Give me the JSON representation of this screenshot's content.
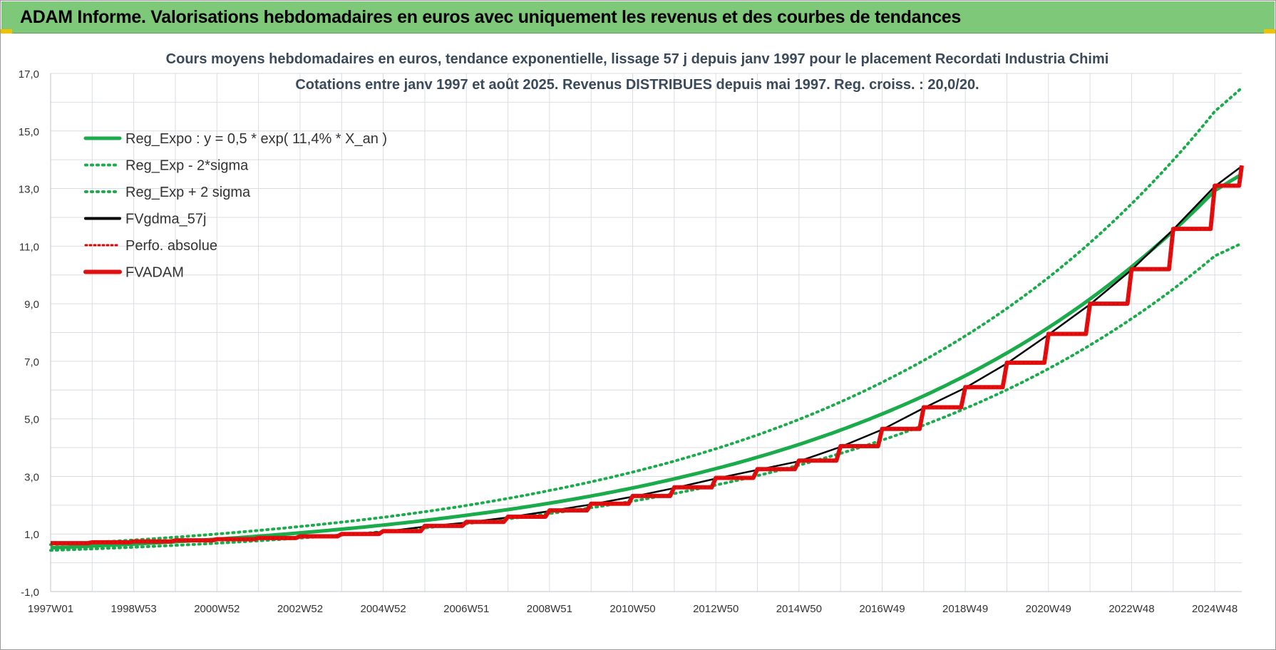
{
  "banner": {
    "title": "ADAM Informe. Valorisations hebdomadaires en euros avec uniquement les revenus et des courbes de tendances"
  },
  "colors": {
    "banner_bg": "#7ec87a",
    "trend": "#1aab4a",
    "fvgdma": "#000000",
    "perfo": "#e00000",
    "fvadam": "#e01010"
  },
  "chart_data": {
    "type": "line",
    "title_line1": "Cours moyens hebdomadaires en euros, tendance exponentielle, lissage 57 j depuis janv 1997 pour le placement Recordati Industria Chimi",
    "title_line2": "Cotations entre janv 1997 et août 2025. Revenus DISTRIBUES depuis mai 1997. Reg. croiss. : 20,0/20.",
    "ylim": [
      -1,
      17
    ],
    "yticks": [
      "17,0",
      "15,0",
      "13,0",
      "11,0",
      "9,0",
      "7,0",
      "5,0",
      "3,0",
      "1,0",
      "-1,0"
    ],
    "ytick_values": [
      17,
      15,
      13,
      11,
      9,
      7,
      5,
      3,
      1,
      -1
    ],
    "xlim": [
      1997.0,
      2025.65
    ],
    "xticks": [
      "1997W01",
      "1998W53",
      "2000W52",
      "2002W52",
      "2004W52",
      "2006W51",
      "2008W51",
      "2010W50",
      "2012W50",
      "2014W50",
      "2016W49",
      "2018W49",
      "2020W49",
      "2022W48",
      "2024W48"
    ],
    "xtick_values": [
      1997.0,
      1999.0,
      2001.0,
      2003.0,
      2005.0,
      2007.0,
      2009.0,
      2011.0,
      2013.0,
      2015.0,
      2017.0,
      2019.0,
      2021.0,
      2023.0,
      2025.0
    ],
    "grid": true,
    "legend_position": "top-left",
    "legend": [
      {
        "label": "Reg_Expo : y = 0,5 * exp( 11,4% *  X_an )",
        "style": "solid",
        "color": "#1aab4a"
      },
      {
        "label": "Reg_Exp - 2*sigma",
        "style": "dotted",
        "color": "#1aab4a"
      },
      {
        "label": "Reg_Exp + 2 sigma",
        "style": "dotted",
        "color": "#1aab4a"
      },
      {
        "label": "FVgdma_57j",
        "style": "solid",
        "color": "#000000"
      },
      {
        "label": "Perfo. absolue",
        "style": "dotted",
        "color": "#e00000"
      },
      {
        "label": "FVADAM",
        "style": "solid",
        "color": "#e01010"
      }
    ],
    "series": [
      {
        "name": "Reg_Expo : y = 0,5 * exp( 11,4% *  X_an )",
        "x": [
          1997.0,
          1999.0,
          2001.0,
          2003.0,
          2005.0,
          2007.0,
          2009.0,
          2011.0,
          2013.0,
          2015.0,
          2017.0,
          2019.0,
          2021.0,
          2023.0,
          2025.0,
          2025.65
        ],
        "values": [
          0.52,
          0.65,
          0.82,
          1.04,
          1.31,
          1.65,
          2.07,
          2.6,
          3.27,
          4.11,
          5.17,
          6.5,
          8.17,
          10.28,
          12.93,
          13.5
        ]
      },
      {
        "name": "Reg_Exp - 2*sigma",
        "x": [
          1997.0,
          1999.0,
          2001.0,
          2003.0,
          2005.0,
          2007.0,
          2009.0,
          2011.0,
          2013.0,
          2015.0,
          2017.0,
          2019.0,
          2021.0,
          2023.0,
          2025.0,
          2025.65
        ],
        "values": [
          0.43,
          0.54,
          0.68,
          0.86,
          1.08,
          1.36,
          1.71,
          2.14,
          2.7,
          3.39,
          4.26,
          5.36,
          6.74,
          8.48,
          10.66,
          11.1
        ]
      },
      {
        "name": "Reg_Exp + 2 sigma",
        "x": [
          1997.0,
          1999.0,
          2001.0,
          2003.0,
          2005.0,
          2007.0,
          2009.0,
          2011.0,
          2013.0,
          2015.0,
          2017.0,
          2019.0,
          2021.0,
          2023.0,
          2025.0,
          2025.65
        ],
        "values": [
          0.63,
          0.79,
          1.0,
          1.26,
          1.58,
          1.99,
          2.51,
          3.15,
          3.96,
          4.98,
          6.27,
          7.88,
          9.91,
          12.47,
          15.68,
          16.5
        ]
      },
      {
        "name": "FVADAM",
        "x": [
          1997.0,
          1998.0,
          1999.0,
          2000.0,
          2001.0,
          2002.0,
          2003.0,
          2004.0,
          2005.0,
          2006.0,
          2007.0,
          2008.0,
          2009.0,
          2010.0,
          2011.0,
          2012.0,
          2013.0,
          2014.0,
          2015.0,
          2016.0,
          2017.0,
          2018.0,
          2019.0,
          2020.0,
          2021.0,
          2022.0,
          2023.0,
          2024.0,
          2025.0,
          2025.65
        ],
        "values": [
          0.68,
          0.71,
          0.74,
          0.78,
          0.82,
          0.86,
          0.92,
          1.0,
          1.1,
          1.28,
          1.42,
          1.6,
          1.82,
          2.05,
          2.32,
          2.62,
          2.95,
          3.25,
          3.55,
          4.05,
          4.65,
          5.4,
          6.1,
          6.95,
          7.95,
          9.0,
          10.2,
          11.6,
          13.1,
          13.8
        ]
      }
    ]
  }
}
